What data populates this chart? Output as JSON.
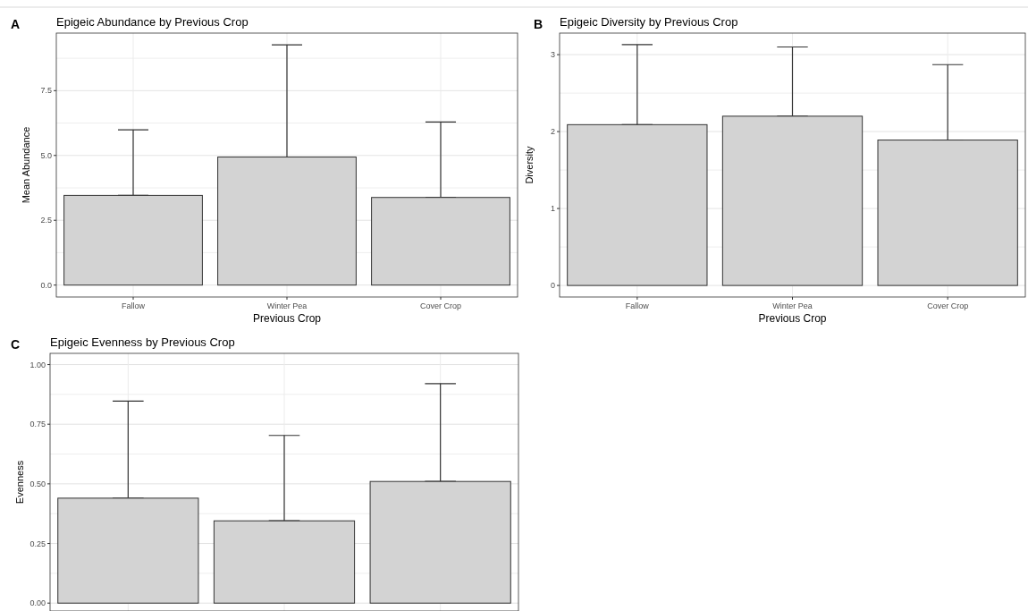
{
  "chart_data": [
    {
      "type": "bar",
      "title": "Epigeic Abundance by Previous Crop",
      "xlabel": "Previous Crop",
      "ylabel": "Mean Abundance",
      "annotations": [
        "A"
      ],
      "categories": [
        "Fallow",
        "Winter Pea",
        "Cover Crop"
      ],
      "values": [
        3.46,
        4.94,
        3.38
      ],
      "errors": [
        [
          3.46,
          5.99
        ],
        [
          4.94,
          9.27
        ],
        [
          3.38,
          6.29
        ]
      ],
      "color": "#d3d3d3",
      "ylim": [
        -0.46,
        9.72
      ],
      "yticks": [
        {
          "value": 0,
          "label": "0.0"
        },
        {
          "value": 1.25,
          "label": null
        },
        2.5,
        {
          "value": 3.75,
          "label": null
        },
        {
          "value": 5,
          "label": "5.0"
        },
        {
          "value": 6.25,
          "label": null
        },
        7.5,
        {
          "value": 8.75,
          "label": null
        }
      ],
      "grid": true
    },
    {
      "type": "bar",
      "title": "Epigeic Diversity by Previous Crop",
      "xlabel": "Previous Crop",
      "ylabel": "Diversity",
      "annotations": [
        "B"
      ],
      "categories": [
        "Fallow",
        "Winter Pea",
        "Cover Crop"
      ],
      "values": [
        2.09,
        2.2,
        1.89
      ],
      "errors": [
        [
          2.09,
          3.13
        ],
        [
          2.2,
          3.1
        ],
        [
          1.89,
          2.87
        ]
      ],
      "color": "#d3d3d3",
      "ylim": [
        -0.15,
        3.28
      ],
      "yticks": [
        0,
        {
          "value": 0.5,
          "label": null
        },
        1,
        {
          "value": 1.5,
          "label": null
        },
        2,
        {
          "value": 2.5,
          "label": null
        },
        3
      ],
      "grid": true
    },
    {
      "type": "bar",
      "title": "Epigeic Evenness by Previous Crop",
      "ylabel": "Evenness",
      "annotations": [
        "C"
      ],
      "categories": [
        null,
        null,
        null
      ],
      "values": [
        0.44,
        0.345,
        0.51
      ],
      "errors": [
        [
          0.44,
          0.847
        ],
        [
          0.345,
          0.703
        ],
        [
          0.51,
          0.92
        ]
      ],
      "color": "#d3d3d3",
      "ylim": [
        -0.033,
        1.047
      ],
      "yticks": [
        {
          "value": 0,
          "label": "0.00"
        },
        {
          "value": 0.125,
          "label": null
        },
        0.25,
        {
          "value": 0.375,
          "label": null
        },
        {
          "value": 0.5,
          "label": "0.50"
        },
        {
          "value": 0.625,
          "label": null
        },
        0.75,
        {
          "value": 0.875,
          "label": null
        },
        {
          "value": 1,
          "label": "1.00"
        }
      ],
      "grid": true,
      "tick_labels": "y"
    }
  ]
}
